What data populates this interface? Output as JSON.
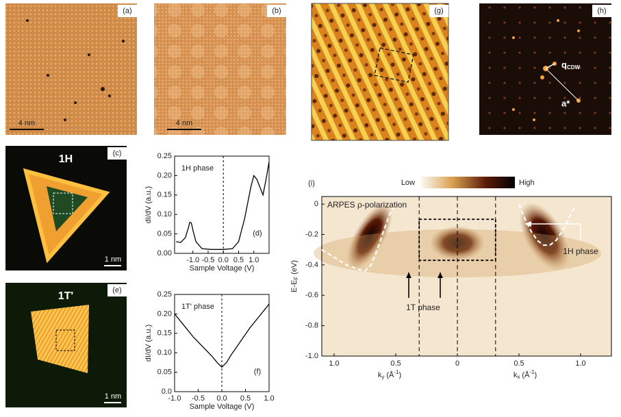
{
  "panels": {
    "a": {
      "label": "(a)",
      "scale": "4 nm"
    },
    "b": {
      "label": "(b)",
      "scale": "4 nm"
    },
    "g": {
      "label": "(g)"
    },
    "h": {
      "label": "(h)",
      "q": [
        "q",
        "CDW"
      ],
      "a": "a*"
    },
    "c": {
      "label": "(c)",
      "phase": "1H",
      "scale": "1 nm"
    },
    "e": {
      "label": "(e)",
      "phase": "1T'",
      "scale": "1 nm"
    }
  },
  "chart_data": [
    {
      "type": "line",
      "panel": "(d)",
      "annotation": "1H phase",
      "x_label": "Sample Voltage (V)",
      "y_label": "dI/dV (a.u.)",
      "color": "#000000",
      "x": [
        -1.55,
        -1.4,
        -1.25,
        -1.15,
        -1.1,
        -1.05,
        -1.0,
        -0.9,
        -0.7,
        -0.4,
        0,
        0.3,
        0.5,
        0.7,
        0.9,
        1.0,
        1.1,
        1.2,
        1.3,
        1.4,
        1.5
      ],
      "values": [
        0.03,
        0.028,
        0.04,
        0.065,
        0.08,
        0.078,
        0.06,
        0.03,
        0.012,
        0.01,
        0.01,
        0.012,
        0.03,
        0.09,
        0.17,
        0.2,
        0.19,
        0.17,
        0.15,
        0.19,
        0.235
      ],
      "xlim": [
        -1.6,
        1.5
      ],
      "ylim": [
        0,
        0.25
      ],
      "vlines": [
        0
      ],
      "xticks": [
        {
          "value": -1,
          "label": "-1.0"
        },
        {
          "value": -0.5,
          "label": "-0.5"
        },
        {
          "value": 0,
          "label": "0.0"
        },
        {
          "value": 0.5,
          "label": "0.5"
        },
        {
          "value": 1,
          "label": "1.0"
        }
      ],
      "yticks": [
        {
          "value": 0,
          "label": "0.00"
        },
        0.05,
        {
          "value": 0.1,
          "label": "0.10"
        },
        0.15,
        {
          "value": 0.2,
          "label": "0.20"
        },
        0.25
      ]
    },
    {
      "type": "line",
      "panel": "(f)",
      "annotation": "1T' phase",
      "x_label": "Sample Voltage (V)",
      "y_label": "dI/dV (a.u.)",
      "color": "#000000",
      "x": [
        -1.0,
        -0.8,
        -0.6,
        -0.4,
        -0.2,
        -0.1,
        0,
        0.1,
        0.2,
        0.4,
        0.6,
        0.8,
        1.0
      ],
      "values": [
        0.2,
        0.17,
        0.14,
        0.115,
        0.09,
        0.075,
        0.063,
        0.075,
        0.095,
        0.13,
        0.165,
        0.195,
        0.225
      ],
      "xlim": [
        -1,
        1
      ],
      "ylim": [
        0,
        0.25
      ],
      "vlines": [
        0
      ],
      "xticks": [
        {
          "value": -1,
          "label": "-1.0"
        },
        {
          "value": -0.5,
          "label": "-0.5"
        },
        {
          "value": 0,
          "label": "0.0"
        },
        {
          "value": 0.5,
          "label": "0.5"
        },
        {
          "value": 1,
          "label": "1.0"
        }
      ],
      "yticks": [
        {
          "value": 0,
          "label": "0.0"
        },
        0.05,
        {
          "value": 0.1,
          "label": "0.10"
        },
        0.15,
        {
          "value": 0.2,
          "label": "0.20"
        },
        0.25
      ]
    },
    {
      "type": "arpes",
      "panel": "(i)",
      "title": "ARPES ρ-polarization",
      "colorbar": [
        "Low",
        "High"
      ],
      "annotations": [
        "1T phase",
        "1H phase"
      ],
      "x_label_left": [
        "k",
        "y",
        " (Å",
        "-1",
        ")"
      ],
      "x_label_right": [
        "k",
        "x",
        " (Å",
        "-1",
        ")"
      ],
      "y_label": [
        "E-E",
        "F",
        " (eV)"
      ],
      "xlim": [
        -1.1,
        1.25
      ],
      "ylim": [
        -1.0,
        0.05
      ],
      "vlines": [
        -0.31,
        0,
        0.31
      ],
      "box": {
        "x": [
          -0.31,
          0.31
        ],
        "y": [
          -0.37,
          -0.1
        ]
      },
      "series": [
        {
          "color": "#ffffff",
          "x": [
            -1.1,
            -1.0,
            -0.9,
            -0.8,
            -0.75,
            -0.7,
            -0.65,
            -0.6,
            -0.55,
            -0.5
          ],
          "values": [
            -0.3,
            -0.35,
            -0.4,
            -0.43,
            -0.44,
            -0.4,
            -0.3,
            -0.18,
            -0.07,
            0.0
          ]
        },
        {
          "color": "#ffffff",
          "x": [
            0.5,
            0.55,
            0.6,
            0.65,
            0.7,
            0.75,
            0.8,
            0.85,
            0.9,
            0.95
          ],
          "values": [
            0,
            -0.1,
            -0.18,
            -0.24,
            -0.27,
            -0.27,
            -0.24,
            -0.18,
            -0.1,
            -0.02
          ]
        }
      ],
      "xticks": [
        {
          "value": -1,
          "label": "1.0"
        },
        {
          "value": -0.5,
          "label": "0.5"
        },
        0,
        0.5,
        {
          "value": 1,
          "label": "1.0"
        }
      ],
      "yticks": [
        0,
        -0.2,
        -0.4,
        -0.6,
        -0.8,
        {
          "value": -1.0,
          "label": "-1.0"
        }
      ]
    }
  ]
}
